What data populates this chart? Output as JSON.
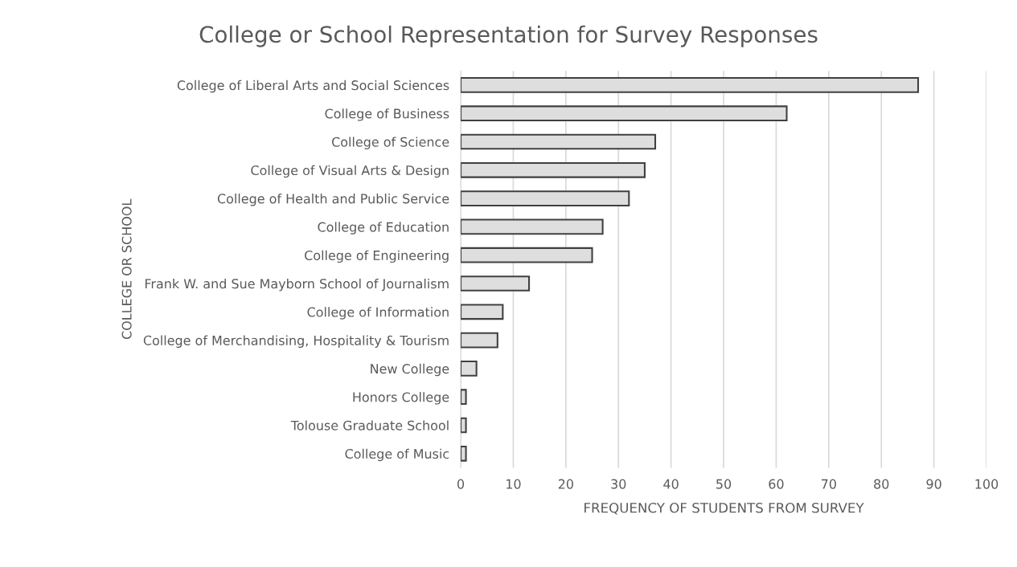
{
  "chart_data": {
    "type": "bar",
    "orientation": "horizontal",
    "title": "College or School Representation for Survey Responses",
    "xlabel": "FREQUENCY OF STUDENTS FROM SURVEY",
    "ylabel": "COLLEGE OR SCHOOL",
    "categories": [
      "College of Liberal Arts and Social Sciences",
      "College of Business",
      "College of Science",
      "College of Visual Arts & Design",
      "College of Health and Public Service",
      "College of Education",
      "College of Engineering",
      "Frank W. and Sue Mayborn School of Journalism",
      "College of Information",
      "College of Merchandising, Hospitality & Tourism",
      "New College",
      "Honors College",
      "Tolouse Graduate School",
      "College of Music"
    ],
    "values": [
      87,
      62,
      37,
      35,
      32,
      27,
      25,
      13,
      8,
      7,
      3,
      1,
      1,
      1
    ],
    "color": "#dedede",
    "xlim": [
      0,
      100
    ],
    "xticks": [
      0,
      10,
      20,
      30,
      40,
      50,
      60,
      70,
      80,
      90,
      100
    ],
    "grid": "x"
  }
}
